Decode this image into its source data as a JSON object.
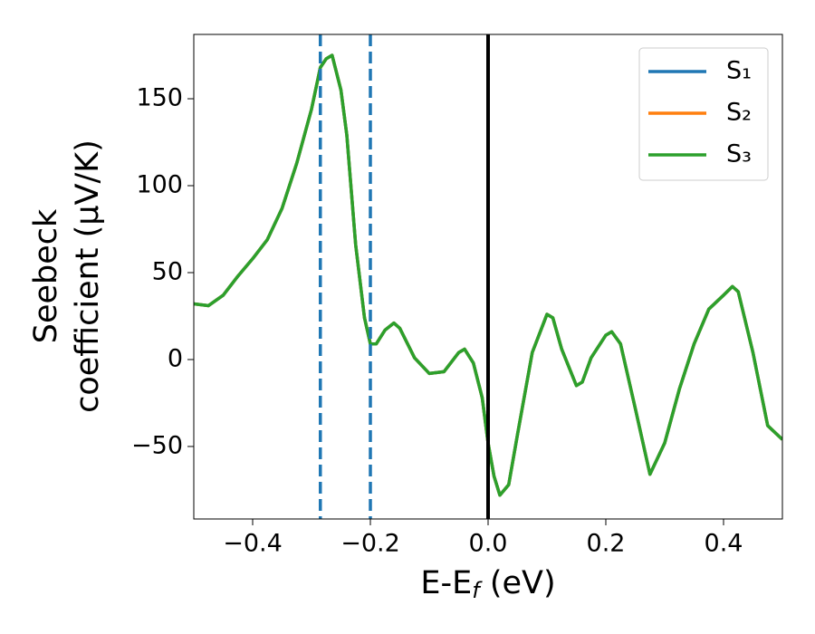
{
  "chart_data": {
    "type": "line",
    "x_label": [
      "E-E",
      "f",
      " (eV)"
    ],
    "y_label": [
      "Seebeck",
      "coefficient  (μV/K)"
    ],
    "x": [
      -0.5,
      -0.475,
      -0.45,
      -0.425,
      -0.4,
      -0.375,
      -0.35,
      -0.325,
      -0.3,
      -0.285,
      -0.275,
      -0.265,
      -0.25,
      -0.24,
      -0.225,
      -0.21,
      -0.2,
      -0.19,
      -0.175,
      -0.16,
      -0.15,
      -0.125,
      -0.1,
      -0.075,
      -0.05,
      -0.04,
      -0.025,
      -0.01,
      0.0,
      0.01,
      0.02,
      0.035,
      0.05,
      0.075,
      0.1,
      0.11,
      0.125,
      0.15,
      0.16,
      0.175,
      0.2,
      0.21,
      0.225,
      0.25,
      0.275,
      0.3,
      0.325,
      0.35,
      0.375,
      0.4,
      0.415,
      0.425,
      0.45,
      0.475,
      0.5
    ],
    "series": [
      {
        "name": "S₁",
        "color": "#1f77b4",
        "values": [
          32,
          31,
          37,
          48,
          58,
          69,
          87,
          113,
          144,
          168,
          173,
          175,
          155,
          129,
          66,
          24,
          9,
          9,
          17,
          21,
          18,
          1,
          -8,
          -7,
          4,
          6,
          -2,
          -22,
          -48,
          -67,
          -78,
          -72,
          -43,
          4,
          26,
          24,
          6,
          -15,
          -13,
          1,
          14,
          16,
          9,
          -28,
          -66,
          -48,
          -17,
          9,
          29,
          37,
          42,
          39,
          4,
          -38,
          -46
        ]
      },
      {
        "name": "S₂",
        "color": "#ff7f0e",
        "values": [
          32,
          31,
          37,
          48,
          58,
          69,
          87,
          113,
          144,
          168,
          173,
          175,
          155,
          129,
          66,
          24,
          9,
          9,
          17,
          21,
          18,
          1,
          -8,
          -7,
          4,
          6,
          -2,
          -22,
          -48,
          -67,
          -78,
          -72,
          -43,
          4,
          26,
          24,
          6,
          -15,
          -13,
          1,
          14,
          16,
          9,
          -28,
          -66,
          -48,
          -17,
          9,
          29,
          37,
          42,
          39,
          4,
          -38,
          -46
        ]
      },
      {
        "name": "S₃",
        "color": "#2ca02c",
        "values": [
          32,
          31,
          37,
          48,
          58,
          69,
          87,
          113,
          144,
          168,
          173,
          175,
          155,
          129,
          66,
          24,
          9,
          9,
          17,
          21,
          18,
          1,
          -8,
          -7,
          4,
          6,
          -2,
          -22,
          -48,
          -67,
          -78,
          -72,
          -43,
          4,
          26,
          24,
          6,
          -15,
          -13,
          1,
          14,
          16,
          9,
          -28,
          -66,
          -48,
          -17,
          9,
          29,
          37,
          42,
          39,
          4,
          -38,
          -46
        ]
      }
    ],
    "vlines": [
      {
        "x": -0.285,
        "color": "#1f77b4",
        "style": "dashed"
      },
      {
        "x": -0.2,
        "color": "#1f77b4",
        "style": "dashed"
      },
      {
        "x": 0.0,
        "color": "#000000",
        "style": "solid"
      }
    ],
    "xlim": [
      -0.5,
      0.5
    ],
    "xticks": [
      {
        "value": -0.4,
        "label": "−0.4"
      },
      {
        "value": -0.2,
        "label": "−0.2"
      },
      {
        "value": 0.0,
        "label": "0.0"
      },
      0.2,
      0.4
    ],
    "ylim": [
      -91.7,
      187
    ],
    "yticks": [
      {
        "value": -50,
        "label": "−50"
      },
      0,
      50,
      100,
      150
    ],
    "grid": false,
    "legend": "upper right"
  }
}
